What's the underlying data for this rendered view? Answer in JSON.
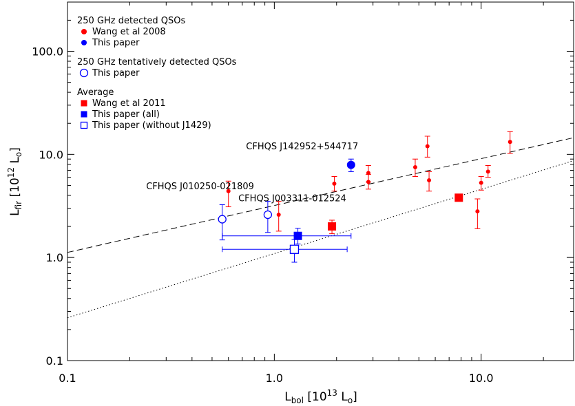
{
  "chart_data": {
    "type": "scatter",
    "title": "",
    "xscale": "log",
    "yscale": "log",
    "xlim": [
      0.1,
      28
    ],
    "ylim": [
      0.1,
      300
    ],
    "xlabel": {
      "main": "L",
      "sub": "bol",
      "rest": " [10",
      "sup": "13",
      "unit": " L",
      "unit_sub": "o",
      "close": "]"
    },
    "ylabel": {
      "main": "L",
      "sub": "fir",
      "rest": " [10",
      "sup": "12",
      "unit": " L",
      "unit_sub": "o",
      "close": "]"
    },
    "x_ticks": [
      {
        "value": 0.1,
        "label": "0.1"
      },
      {
        "value": 1.0,
        "label": "1.0"
      },
      {
        "value": 10.0,
        "label": "10.0"
      }
    ],
    "y_ticks": [
      {
        "value": 0.1,
        "label": "0.1"
      },
      {
        "value": 1.0,
        "label": "1.0"
      },
      {
        "value": 10.0,
        "label": "10.0"
      },
      {
        "value": 100.0,
        "label": "100.0"
      }
    ],
    "legend": {
      "groups": [
        {
          "title": "250 GHz detected QSOs",
          "entries": [
            {
              "label": "Wang et al 2008",
              "marker": "dot",
              "color": "#ff0000"
            },
            {
              "label": "This paper",
              "marker": "dot",
              "color": "#0000ff"
            }
          ]
        },
        {
          "title": "250 GHz tentatively detected QSOs",
          "entries": [
            {
              "label": "This paper",
              "marker": "open-circle",
              "color": "#0000ff"
            }
          ]
        },
        {
          "title": "Average",
          "entries": [
            {
              "label": "Wang et al 2011",
              "marker": "filled-square",
              "color": "#ff0000"
            },
            {
              "label": "This paper (all)",
              "marker": "filled-square",
              "color": "#0000ff"
            },
            {
              "label": "This paper (without J1429)",
              "marker": "open-square",
              "color": "#0000ff"
            }
          ]
        }
      ]
    },
    "lines": [
      {
        "style": "dashed",
        "points": [
          [
            0.1,
            1.12
          ],
          [
            28,
            14.5
          ]
        ]
      },
      {
        "style": "dotted",
        "points": [
          [
            0.1,
            0.26
          ],
          [
            28,
            8.7
          ]
        ]
      }
    ],
    "series": [
      {
        "name": "Wang et al 2008",
        "marker": "dot",
        "color": "#ff0000",
        "points": [
          {
            "x": 0.6,
            "y": 4.4,
            "ylo": 3.1,
            "yhi": 5.5
          },
          {
            "x": 1.05,
            "y": 2.6,
            "ylo": 1.8,
            "yhi": 3.5
          },
          {
            "x": 1.95,
            "y": 5.2,
            "ylo": 4.4,
            "yhi": 6.1
          },
          {
            "x": 2.85,
            "y": 6.6,
            "ylo": 5.4,
            "yhi": 7.8
          },
          {
            "x": 2.85,
            "y": 5.4,
            "ylo": 4.6,
            "yhi": 6.4
          },
          {
            "x": 4.8,
            "y": 7.5,
            "ylo": 6.1,
            "yhi": 9.0
          },
          {
            "x": 5.5,
            "y": 12.0,
            "ylo": 9.4,
            "yhi": 15.0
          },
          {
            "x": 5.6,
            "y": 5.6,
            "ylo": 4.4,
            "yhi": 6.8
          },
          {
            "x": 9.6,
            "y": 2.8,
            "ylo": 1.9,
            "yhi": 3.7
          },
          {
            "x": 10.0,
            "y": 5.3,
            "ylo": 4.5,
            "yhi": 6.1
          },
          {
            "x": 10.8,
            "y": 6.8,
            "ylo": 6.0,
            "yhi": 7.8
          },
          {
            "x": 13.8,
            "y": 13.2,
            "ylo": 10.2,
            "yhi": 16.6
          }
        ]
      },
      {
        "name": "This paper",
        "marker": "dot-large",
        "color": "#0000ff",
        "points": [
          {
            "x": 2.35,
            "y": 7.9,
            "ylo": 6.8,
            "yhi": 9.0
          }
        ]
      },
      {
        "name": "This paper (tentative)",
        "marker": "open-circle",
        "color": "#0000ff",
        "points": [
          {
            "x": 0.56,
            "y": 2.35,
            "ylo": 1.48,
            "yhi": 3.25
          },
          {
            "x": 0.93,
            "y": 2.6,
            "ylo": 1.75,
            "yhi": 3.5
          }
        ]
      },
      {
        "name": "Wang et al 2011",
        "marker": "filled-square",
        "color": "#ff0000",
        "points": [
          {
            "x": 1.9,
            "y": 2.0,
            "ylo": 1.7,
            "yhi": 2.3
          },
          {
            "x": 7.8,
            "y": 3.8
          }
        ]
      },
      {
        "name": "This paper (all)",
        "marker": "filled-square",
        "color": "#0000ff",
        "points": [
          {
            "x": 1.3,
            "y": 1.62,
            "ylo": 1.35,
            "yhi": 1.92,
            "xlo": 0.56,
            "xhi": 2.35
          }
        ]
      },
      {
        "name": "This paper (without J1429)",
        "marker": "open-square",
        "color": "#0000ff",
        "points": [
          {
            "x": 1.25,
            "y": 1.2,
            "ylo": 0.9,
            "yhi": 1.5,
            "xlo": 0.56,
            "xhi": 2.25
          }
        ]
      }
    ],
    "annotations": [
      {
        "text": "CFHQS J142952+544717",
        "x": 0.73,
        "y": 11.2
      },
      {
        "text": "CFHQS J010250-021809",
        "x": 0.24,
        "y": 4.6
      },
      {
        "text": "CFHQS J003311-012524",
        "x": 0.67,
        "y": 3.5
      }
    ]
  }
}
